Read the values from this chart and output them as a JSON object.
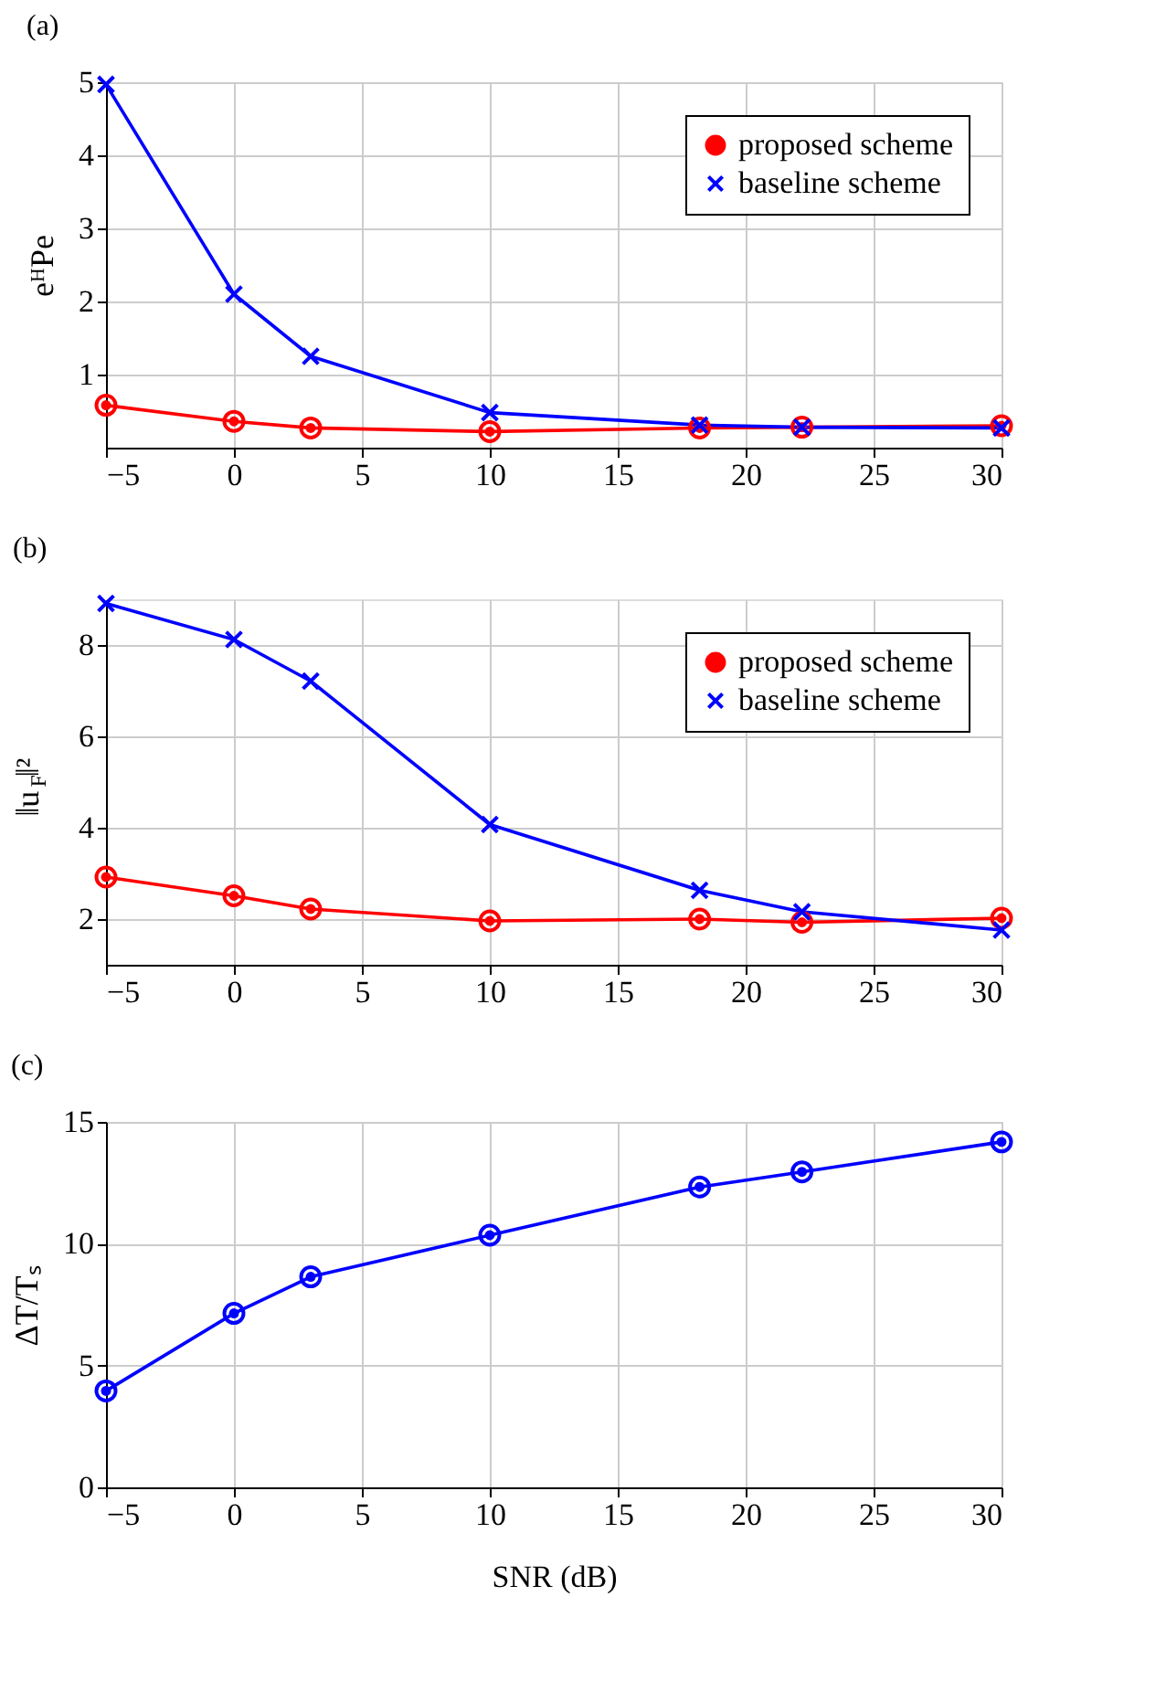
{
  "chart_data": [
    {
      "type": "line",
      "title": "(a)",
      "ylabel": "eᴴPe",
      "x": [
        -5,
        0,
        3,
        10,
        18.2,
        22.2,
        30
      ],
      "xlim": [
        -5,
        30
      ],
      "xticks": [
        -5,
        0,
        5,
        10,
        15,
        20,
        25,
        30
      ],
      "ylim": [
        0,
        5
      ],
      "yticks": [
        1,
        2,
        3,
        4,
        5
      ],
      "grid": true,
      "legend": "top right",
      "line_style": "solid",
      "series": [
        {
          "name": "proposed scheme",
          "color": "#ff0000",
          "marker": "circle",
          "values": [
            0.58,
            0.36,
            0.27,
            0.22,
            0.27,
            0.28,
            0.3
          ]
        },
        {
          "name": "baseline scheme",
          "color": "#0000ff",
          "marker": "cross",
          "values": [
            4.97,
            2.1,
            1.25,
            0.48,
            0.31,
            0.28,
            0.27
          ]
        }
      ]
    },
    {
      "type": "line",
      "title": "(b)",
      "ylabel": "‖u$_{F}$‖²",
      "x": [
        -5,
        0,
        3,
        10,
        18.2,
        22.2,
        30
      ],
      "xlim": [
        -5,
        30
      ],
      "xticks": [
        -5,
        0,
        5,
        10,
        15,
        20,
        25,
        30
      ],
      "ylim": [
        1,
        9
      ],
      "yticks": [
        2,
        4,
        6,
        8
      ],
      "grid": true,
      "legend": "top right",
      "line_style": "solid",
      "series": [
        {
          "name": "proposed scheme",
          "color": "#ff0000",
          "marker": "circle",
          "values": [
            2.92,
            2.51,
            2.22,
            1.96,
            2.0,
            1.93,
            2.02
          ]
        },
        {
          "name": "baseline scheme",
          "color": "#0000ff",
          "marker": "cross",
          "values": [
            8.91,
            8.12,
            7.21,
            4.07,
            2.63,
            2.16,
            1.76
          ]
        }
      ]
    },
    {
      "type": "line",
      "title": "(c)",
      "xlabel": "SNR (dB)",
      "ylabel": "ΔT/Tₛ",
      "x": [
        -5,
        0,
        3,
        10,
        18.2,
        22.2,
        30
      ],
      "xlim": [
        -5,
        30
      ],
      "xticks": [
        -5,
        0,
        5,
        10,
        15,
        20,
        25,
        30
      ],
      "ylim": [
        0,
        15
      ],
      "yticks": [
        0,
        5,
        10,
        15
      ],
      "grid": true,
      "marker": "circle",
      "line_style": "solid",
      "series": [
        {
          "color": "#0000ff",
          "values": [
            3.96,
            7.14,
            8.64,
            10.35,
            12.33,
            12.95,
            14.18
          ]
        }
      ]
    }
  ]
}
